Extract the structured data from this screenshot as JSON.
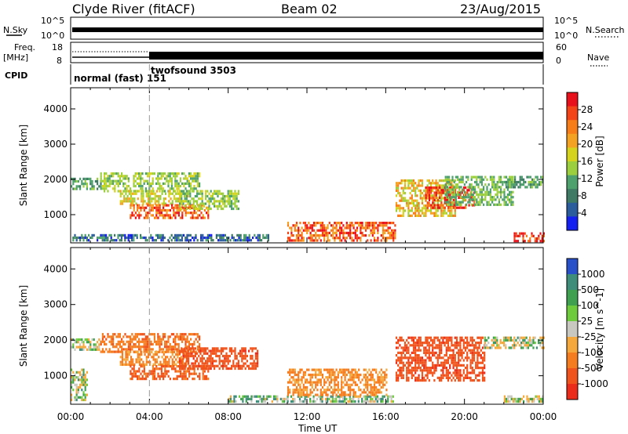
{
  "header": {
    "station": "Clyde River (fitACF)",
    "beam": "Beam 02",
    "date": "23/Aug/2015"
  },
  "top_panels": {
    "nsky_label": "N.Sky",
    "nsearch_label": "N.Search",
    "freq_label": "Freq.",
    "freq_unit": "[MHz]",
    "nave_label": "Nave",
    "cpid_label": "CPID",
    "nsky_ticks": [
      "10^5",
      "10^0"
    ],
    "nsearch_ticks": [
      "10^5",
      "10^0"
    ],
    "freq_ticks": [
      "18",
      "8"
    ],
    "nave_ticks": [
      "60",
      "0"
    ],
    "cpid_mode1": "normal (fast) 151",
    "cpid_mode2": "twofsound 3503",
    "mode_change_hour": 4
  },
  "axes": {
    "xlabel": "Time UT",
    "ylabel": "Slant Range [km]",
    "xticks": [
      "00:00",
      "04:00",
      "08:00",
      "12:00",
      "16:00",
      "20:00",
      "00:00"
    ],
    "yticks": [
      "1000",
      "2000",
      "3000",
      "4000"
    ]
  },
  "colorbars": {
    "power_title": "Power [dB]",
    "power_ticks": [
      "28",
      "24",
      "20",
      "16",
      "12",
      "8",
      "4"
    ],
    "power_colors": [
      "#e8101a",
      "#f34418",
      "#f77d18",
      "#f3a222",
      "#d6d31c",
      "#9ccf3e",
      "#4ea06c",
      "#3e7a64",
      "#2b5c9c",
      "#1420f0"
    ],
    "velocity_title": "Velocity [m s^-1]",
    "velocity_ticks": [
      "1000",
      "500",
      "100",
      "25",
      "-25",
      "-100",
      "-500",
      "-1000"
    ],
    "velocity_colors": [
      "#2850c8",
      "#3e8c7a",
      "#3fa050",
      "#6ecb3c",
      "#c8c8c0",
      "#f5a93c",
      "#f57d20",
      "#f0541c",
      "#ec2c1a"
    ]
  },
  "chart_data": [
    {
      "type": "heatmap",
      "title": "Power [dB]",
      "xlabel": "Time UT",
      "ylabel": "Slant Range [km]",
      "xlim": [
        0,
        24
      ],
      "ylim": [
        200,
        4600
      ],
      "colorbar_range": [
        0,
        30
      ],
      "regions": [
        {
          "t0": 0.0,
          "t1": 1.5,
          "r0": 1750,
          "r1": 2050,
          "power": 14
        },
        {
          "t0": 1.5,
          "t1": 6.5,
          "r0": 1700,
          "r1": 2200,
          "power": 18
        },
        {
          "t0": 2.5,
          "t1": 6.0,
          "r0": 1300,
          "r1": 1700,
          "power": 20
        },
        {
          "t0": 3.0,
          "t1": 7.0,
          "r0": 900,
          "r1": 1300,
          "power": 26
        },
        {
          "t0": 5.5,
          "t1": 8.5,
          "r0": 1200,
          "r1": 1700,
          "power": 18
        },
        {
          "t0": 0.0,
          "t1": 10.0,
          "r0": 250,
          "r1": 450,
          "power": 10
        },
        {
          "t0": 11.0,
          "t1": 16.5,
          "r0": 250,
          "r1": 800,
          "power": 26
        },
        {
          "t0": 16.5,
          "t1": 19.5,
          "r0": 1000,
          "r1": 2000,
          "power": 22
        },
        {
          "t0": 18.0,
          "t1": 20.5,
          "r0": 1200,
          "r1": 1800,
          "power": 28
        },
        {
          "t0": 19.0,
          "t1": 22.5,
          "r0": 1300,
          "r1": 2100,
          "power": 16
        },
        {
          "t0": 22.0,
          "t1": 24.0,
          "r0": 1800,
          "r1": 2100,
          "power": 14
        },
        {
          "t0": 22.5,
          "t1": 24.0,
          "r0": 250,
          "r1": 500,
          "power": 28
        }
      ]
    },
    {
      "type": "heatmap",
      "title": "Velocity [m s^-1]",
      "xlabel": "Time UT",
      "ylabel": "Slant Range [km]",
      "xlim": [
        0,
        24
      ],
      "ylim": [
        200,
        4600
      ],
      "colorbar_range": [
        -1000,
        1000
      ],
      "regions": [
        {
          "t0": 0.0,
          "t1": 1.5,
          "r0": 1750,
          "r1": 2050,
          "velocity": 0
        },
        {
          "t0": 0.0,
          "t1": 0.8,
          "r0": 300,
          "r1": 1200,
          "velocity": 0
        },
        {
          "t0": 1.5,
          "t1": 6.5,
          "r0": 1700,
          "r1": 2200,
          "velocity": -300
        },
        {
          "t0": 2.5,
          "t1": 6.0,
          "r0": 1300,
          "r1": 1700,
          "velocity": -200
        },
        {
          "t0": 3.0,
          "t1": 7.0,
          "r0": 900,
          "r1": 1300,
          "velocity": -400
        },
        {
          "t0": 5.5,
          "t1": 9.5,
          "r0": 1200,
          "r1": 1800,
          "velocity": -500
        },
        {
          "t0": 8.0,
          "t1": 16.5,
          "r0": 250,
          "r1": 450,
          "velocity": 80
        },
        {
          "t0": 11.0,
          "t1": 16.0,
          "r0": 450,
          "r1": 1200,
          "velocity": -200
        },
        {
          "t0": 16.5,
          "t1": 21.0,
          "r0": 900,
          "r1": 2100,
          "velocity": -500
        },
        {
          "t0": 21.0,
          "t1": 24.0,
          "r0": 1800,
          "r1": 2100,
          "velocity": 0
        },
        {
          "t0": 22.0,
          "t1": 24.0,
          "r0": 250,
          "r1": 450,
          "velocity": 0
        }
      ]
    }
  ]
}
